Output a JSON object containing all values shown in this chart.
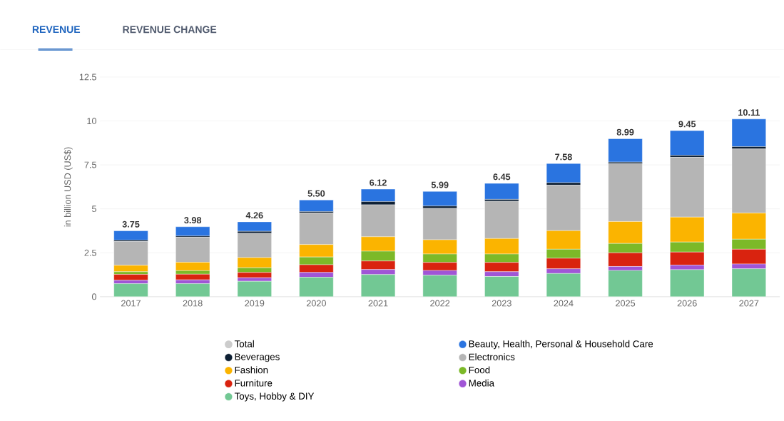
{
  "chart_data": {
    "type": "bar",
    "stacked": true,
    "ylabel": "in billion USD (US$)",
    "annotations": [
      "REVENUE",
      "REVENUE CHANGE"
    ],
    "categories": [
      "2017",
      "2018",
      "2019",
      "2020",
      "2021",
      "2022",
      "2023",
      "2024",
      "2025",
      "2026",
      "2027"
    ],
    "ylim": [
      0,
      12.5
    ],
    "yticks": [
      0,
      2.5,
      5,
      7.5,
      10,
      12.5
    ],
    "grid": "y",
    "legend": "bottom",
    "totals": [
      "3.75",
      "3.98",
      "4.26",
      "5.50",
      "6.12",
      "5.99",
      "6.45",
      "7.58",
      "8.99",
      "9.45",
      "10.11"
    ],
    "series": [
      {
        "name": "Toys, Hobby & DIY",
        "color": "#72c894",
        "values": [
          0.74,
          0.74,
          0.88,
          1.11,
          1.26,
          1.22,
          1.15,
          1.32,
          1.49,
          1.54,
          1.59
        ]
      },
      {
        "name": "Media",
        "color": "#a055d6",
        "values": [
          0.2,
          0.22,
          0.2,
          0.27,
          0.29,
          0.27,
          0.27,
          0.27,
          0.23,
          0.26,
          0.27
        ]
      },
      {
        "name": "Furniture",
        "color": "#d9230f",
        "values": [
          0.33,
          0.32,
          0.3,
          0.44,
          0.48,
          0.46,
          0.53,
          0.6,
          0.78,
          0.74,
          0.84
        ]
      },
      {
        "name": "Food",
        "color": "#7cb928",
        "values": [
          0.15,
          0.2,
          0.27,
          0.44,
          0.56,
          0.48,
          0.48,
          0.51,
          0.53,
          0.57,
          0.57
        ]
      },
      {
        "name": "Fashion",
        "color": "#fbb400",
        "values": [
          0.37,
          0.48,
          0.58,
          0.71,
          0.82,
          0.81,
          0.88,
          1.06,
          1.25,
          1.42,
          1.49
        ]
      },
      {
        "name": "Electronics",
        "color": "#b5b5b5",
        "values": [
          1.35,
          1.42,
          1.38,
          1.79,
          1.82,
          1.79,
          2.12,
          2.59,
          3.29,
          3.4,
          3.65
        ]
      },
      {
        "name": "Beverages",
        "color": "#0d1f33",
        "values": [
          0.08,
          0.07,
          0.11,
          0.08,
          0.18,
          0.13,
          0.11,
          0.14,
          0.09,
          0.11,
          0.13
        ]
      },
      {
        "name": "Beauty, Health, Personal & Household Care",
        "color": "#2a74e0",
        "values": [
          0.53,
          0.53,
          0.54,
          0.66,
          0.71,
          0.83,
          0.91,
          1.09,
          1.33,
          1.41,
          1.57
        ]
      },
      {
        "name": "Total",
        "color": "#cccccc",
        "values": [
          null,
          null,
          null,
          null,
          null,
          null,
          null,
          null,
          null,
          null,
          null
        ]
      }
    ]
  }
}
